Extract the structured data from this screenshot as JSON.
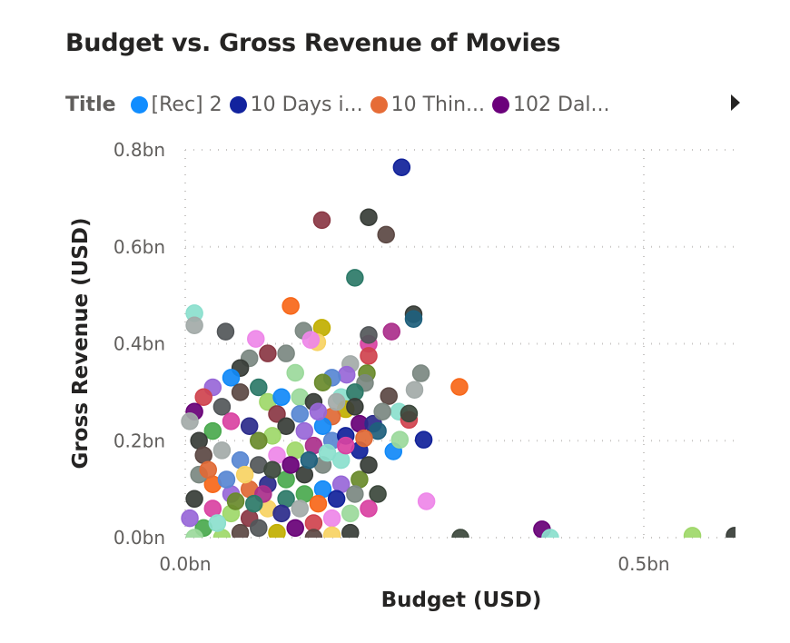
{
  "chart_data": {
    "type": "scatter",
    "title": "Budget vs. Gross Revenue of Movies",
    "xlabel": "Budget (USD)",
    "ylabel": "Gross Revenue (USD)",
    "xlim": [
      0,
      0.6
    ],
    "ylim": [
      0,
      0.8
    ],
    "unit": "bn",
    "x_ticks": [
      {
        "value": 0,
        "label": "0.0bn"
      },
      {
        "value": 0.5,
        "label": "0.5bn"
      }
    ],
    "y_ticks": [
      {
        "value": 0,
        "label": "0.0bn"
      },
      {
        "value": 0.2,
        "label": "0.2bn"
      },
      {
        "value": 0.4,
        "label": "0.4bn"
      },
      {
        "value": 0.6,
        "label": "0.6bn"
      },
      {
        "value": 0.8,
        "label": "0.8bn"
      }
    ],
    "grid": true,
    "legend": {
      "position": "top",
      "title": "Title",
      "items": [
        {
          "label": "[Rec] 2",
          "color": "#118DFF"
        },
        {
          "label": "10 Days i...",
          "color": "#12239E"
        },
        {
          "label": "10 Thin...",
          "color": "#E66C37"
        },
        {
          "label": "102 Dal...",
          "color": "#6B007B"
        }
      ]
    },
    "palette": [
      "#118DFF",
      "#12239E",
      "#E66C37",
      "#6B007B",
      "#3A3F3A",
      "#7F8C85",
      "#A4DE6C",
      "#E044A7",
      "#4CAF50",
      "#8E3A46",
      "#5B8BD9",
      "#C8B400",
      "#2E7D6B",
      "#F58BF0",
      "#9C6ADE",
      "#55595C",
      "#8FE6D4",
      "#D64550",
      "#6C8E2D",
      "#2D2D8F",
      "#A8B0AE",
      "#FFD966",
      "#FF6A1A",
      "#5E4A45",
      "#1F6380",
      "#B0308F",
      "#9FE0A0",
      "#3E4A3E"
    ],
    "points": [
      [
        0.236,
        0.764,
        1
      ],
      [
        0.149,
        0.655,
        9
      ],
      [
        0.2,
        0.661,
        4
      ],
      [
        0.219,
        0.625,
        23
      ],
      [
        0.185,
        0.536,
        12
      ],
      [
        0.115,
        0.478,
        22
      ],
      [
        0.01,
        0.463,
        16
      ],
      [
        0.01,
        0.438,
        20
      ],
      [
        0.044,
        0.425,
        15
      ],
      [
        0.249,
        0.461,
        4
      ],
      [
        0.249,
        0.451,
        24
      ],
      [
        0.225,
        0.425,
        25
      ],
      [
        0.299,
        0.311,
        22
      ],
      [
        0.257,
        0.339,
        5
      ],
      [
        0.263,
        0.075,
        13
      ],
      [
        0.3,
        0.0,
        27
      ],
      [
        0.389,
        0.017,
        3
      ],
      [
        0.398,
        0.0,
        16
      ],
      [
        0.553,
        0.004,
        6
      ],
      [
        0.599,
        0.004,
        4
      ],
      [
        0.26,
        0.202,
        1
      ],
      [
        0.227,
        0.178,
        0
      ],
      [
        0.149,
        0.433,
        11
      ],
      [
        0.129,
        0.427,
        5
      ],
      [
        0.077,
        0.41,
        13
      ],
      [
        0.144,
        0.403,
        21
      ],
      [
        0.137,
        0.408,
        13
      ],
      [
        0.2,
        0.4,
        7
      ],
      [
        0.2,
        0.375,
        17
      ],
      [
        0.2,
        0.418,
        15
      ],
      [
        0.222,
        0.292,
        23
      ],
      [
        0.233,
        0.26,
        16
      ],
      [
        0.244,
        0.243,
        17
      ],
      [
        0.244,
        0.256,
        27
      ],
      [
        0.234,
        0.202,
        26
      ],
      [
        0.25,
        0.305,
        20
      ],
      [
        0.198,
        0.339,
        18
      ],
      [
        0.196,
        0.319,
        5
      ],
      [
        0.18,
        0.358,
        20
      ],
      [
        0.176,
        0.336,
        14
      ],
      [
        0.16,
        0.33,
        10
      ],
      [
        0.15,
        0.32,
        18
      ],
      [
        0.12,
        0.34,
        26
      ],
      [
        0.11,
        0.38,
        5
      ],
      [
        0.09,
        0.38,
        9
      ],
      [
        0.07,
        0.37,
        5
      ],
      [
        0.06,
        0.35,
        4
      ],
      [
        0.05,
        0.33,
        0
      ],
      [
        0.03,
        0.31,
        14
      ],
      [
        0.02,
        0.29,
        17
      ],
      [
        0.01,
        0.26,
        3
      ],
      [
        0.005,
        0.24,
        20
      ],
      [
        0.04,
        0.27,
        15
      ],
      [
        0.06,
        0.3,
        23
      ],
      [
        0.08,
        0.31,
        12
      ],
      [
        0.09,
        0.28,
        6
      ],
      [
        0.1,
        0.255,
        9
      ],
      [
        0.125,
        0.29,
        26
      ],
      [
        0.14,
        0.28,
        4
      ],
      [
        0.17,
        0.29,
        16
      ],
      [
        0.185,
        0.3,
        12
      ],
      [
        0.175,
        0.265,
        11
      ],
      [
        0.16,
        0.25,
        2
      ],
      [
        0.15,
        0.23,
        0
      ],
      [
        0.13,
        0.22,
        14
      ],
      [
        0.11,
        0.23,
        4
      ],
      [
        0.095,
        0.21,
        6
      ],
      [
        0.08,
        0.2,
        18
      ],
      [
        0.07,
        0.23,
        19
      ],
      [
        0.05,
        0.24,
        7
      ],
      [
        0.03,
        0.22,
        8
      ],
      [
        0.015,
        0.2,
        4
      ],
      [
        0.02,
        0.17,
        23
      ],
      [
        0.04,
        0.18,
        20
      ],
      [
        0.06,
        0.16,
        10
      ],
      [
        0.08,
        0.15,
        15
      ],
      [
        0.1,
        0.17,
        13
      ],
      [
        0.12,
        0.18,
        6
      ],
      [
        0.14,
        0.19,
        25
      ],
      [
        0.16,
        0.2,
        10
      ],
      [
        0.175,
        0.21,
        1
      ],
      [
        0.19,
        0.235,
        3
      ],
      [
        0.205,
        0.235,
        19
      ],
      [
        0.21,
        0.22,
        24
      ],
      [
        0.19,
        0.18,
        1
      ],
      [
        0.17,
        0.16,
        16
      ],
      [
        0.15,
        0.15,
        5
      ],
      [
        0.13,
        0.13,
        4
      ],
      [
        0.11,
        0.12,
        8
      ],
      [
        0.09,
        0.11,
        19
      ],
      [
        0.07,
        0.1,
        2
      ],
      [
        0.05,
        0.09,
        14
      ],
      [
        0.03,
        0.11,
        22
      ],
      [
        0.015,
        0.13,
        5
      ],
      [
        0.01,
        0.08,
        4
      ],
      [
        0.03,
        0.06,
        7
      ],
      [
        0.05,
        0.05,
        6
      ],
      [
        0.07,
        0.04,
        9
      ],
      [
        0.09,
        0.06,
        21
      ],
      [
        0.11,
        0.08,
        12
      ],
      [
        0.13,
        0.09,
        8
      ],
      [
        0.15,
        0.1,
        0
      ],
      [
        0.17,
        0.11,
        14
      ],
      [
        0.19,
        0.12,
        18
      ],
      [
        0.2,
        0.15,
        4
      ],
      [
        0.21,
        0.09,
        27
      ],
      [
        0.2,
        0.06,
        7
      ],
      [
        0.18,
        0.05,
        26
      ],
      [
        0.16,
        0.04,
        13
      ],
      [
        0.14,
        0.03,
        17
      ],
      [
        0.12,
        0.02,
        3
      ],
      [
        0.1,
        0.01,
        11
      ],
      [
        0.08,
        0.02,
        15
      ],
      [
        0.06,
        0.01,
        23
      ],
      [
        0.04,
        0.0,
        6
      ],
      [
        0.02,
        0.02,
        8
      ],
      [
        0.005,
        0.04,
        14
      ],
      [
        0.025,
        0.14,
        2
      ],
      [
        0.045,
        0.12,
        10
      ],
      [
        0.065,
        0.13,
        21
      ],
      [
        0.085,
        0.09,
        25
      ],
      [
        0.105,
        0.05,
        19
      ],
      [
        0.125,
        0.06,
        20
      ],
      [
        0.145,
        0.07,
        22
      ],
      [
        0.165,
        0.08,
        1
      ],
      [
        0.185,
        0.09,
        5
      ],
      [
        0.16,
        0.005,
        21
      ],
      [
        0.18,
        0.01,
        4
      ],
      [
        0.14,
        0.0,
        23
      ],
      [
        0.01,
        0.0,
        26
      ],
      [
        0.035,
        0.03,
        16
      ],
      [
        0.055,
        0.075,
        18
      ],
      [
        0.075,
        0.07,
        12
      ],
      [
        0.095,
        0.14,
        27
      ],
      [
        0.115,
        0.15,
        3
      ],
      [
        0.135,
        0.16,
        24
      ],
      [
        0.155,
        0.175,
        16
      ],
      [
        0.175,
        0.19,
        7
      ],
      [
        0.195,
        0.205,
        2
      ],
      [
        0.215,
        0.26,
        5
      ],
      [
        0.185,
        0.27,
        4
      ],
      [
        0.165,
        0.28,
        20
      ],
      [
        0.145,
        0.26,
        14
      ],
      [
        0.125,
        0.255,
        10
      ],
      [
        0.105,
        0.29,
        0
      ]
    ]
  }
}
